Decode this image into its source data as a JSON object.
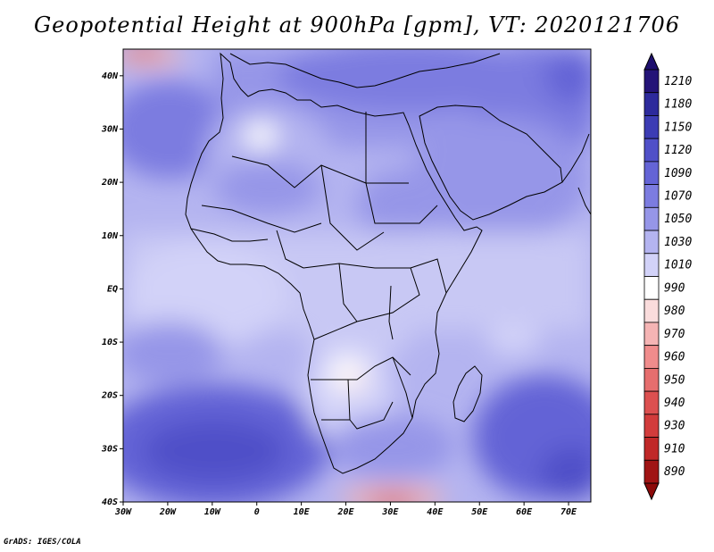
{
  "title": "Geopotential Height at 900hPa [gpm], VT: 2020121706",
  "credit": "GrADS: IGES/COLA",
  "map": {
    "lon_range": [
      -30,
      75
    ],
    "lat_range": [
      -40,
      45
    ],
    "lon_ticks": [
      "30W",
      "20W",
      "10W",
      "0",
      "10E",
      "20E",
      "30E",
      "40E",
      "50E",
      "60E",
      "70E"
    ],
    "lat_ticks": [
      "40N",
      "30N",
      "20N",
      "10N",
      "EQ",
      "10S",
      "20S",
      "30S",
      "40S"
    ]
  },
  "colorbar": {
    "levels": [
      1210,
      1180,
      1150,
      1120,
      1090,
      1070,
      1050,
      1030,
      1010,
      990,
      980,
      970,
      960,
      950,
      940,
      930,
      910,
      890
    ],
    "colors": [
      "#241478",
      "#2d2a9c",
      "#3c3cb4",
      "#5050c8",
      "#6464d6",
      "#7c7ce0",
      "#9696e8",
      "#b4b4f0",
      "#d2d2f8",
      "#ffffff",
      "#fadcdc",
      "#f5b4b4",
      "#f08c8c",
      "#e66e6e",
      "#dc5050",
      "#d23c3c",
      "#c02828",
      "#a01414"
    ],
    "top_arrow_color": "#1e0f6e",
    "bottom_arrow_color": "#8c0a0a"
  }
}
